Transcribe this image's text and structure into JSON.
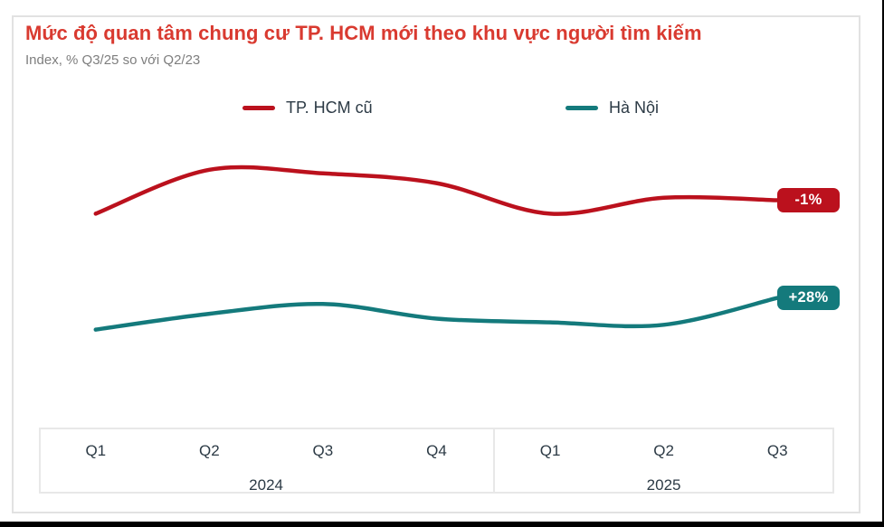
{
  "header": {
    "title": "Mức độ quan tâm chung cư TP. HCM mới theo khu vực người tìm kiếm",
    "subtitle": "Index, % Q3/25 so với Q2/23"
  },
  "legend": [
    {
      "label": "TP. HCM cũ",
      "color": "#bb111d"
    },
    {
      "label": "Hà Nội",
      "color": "#147a7c"
    }
  ],
  "chart_data": {
    "type": "line",
    "title": "Mức độ quan tâm chung cư TP. HCM mới theo khu vực người tìm kiếm",
    "subtitle": "Index, % Q3/25 so với Q2/23",
    "categories": [
      "Q1",
      "Q2",
      "Q3",
      "Q4",
      "Q1",
      "Q2",
      "Q3"
    ],
    "year_groups": [
      {
        "label": "2024",
        "quarters": 4
      },
      {
        "label": "2025",
        "quarters": 3
      }
    ],
    "series": [
      {
        "name": "TP. HCM cũ",
        "color": "#bb111d",
        "values": [
          68,
          86,
          84.5,
          80.5,
          68,
          74.5,
          73.5
        ],
        "end_label": "-1%"
      },
      {
        "name": "Hà Nội",
        "color": "#147a7c",
        "values": [
          20.5,
          27,
          31,
          25,
          23.5,
          22.5,
          33.5
        ],
        "end_label": "+28%"
      }
    ],
    "value_scale": "relative interest index 0–100, estimated from line positions (no y-axis shown in chart)",
    "ylim": [
      0,
      100
    ],
    "grid": false,
    "legend_position": "top",
    "annotations": [
      "-1%",
      "+28%"
    ]
  }
}
